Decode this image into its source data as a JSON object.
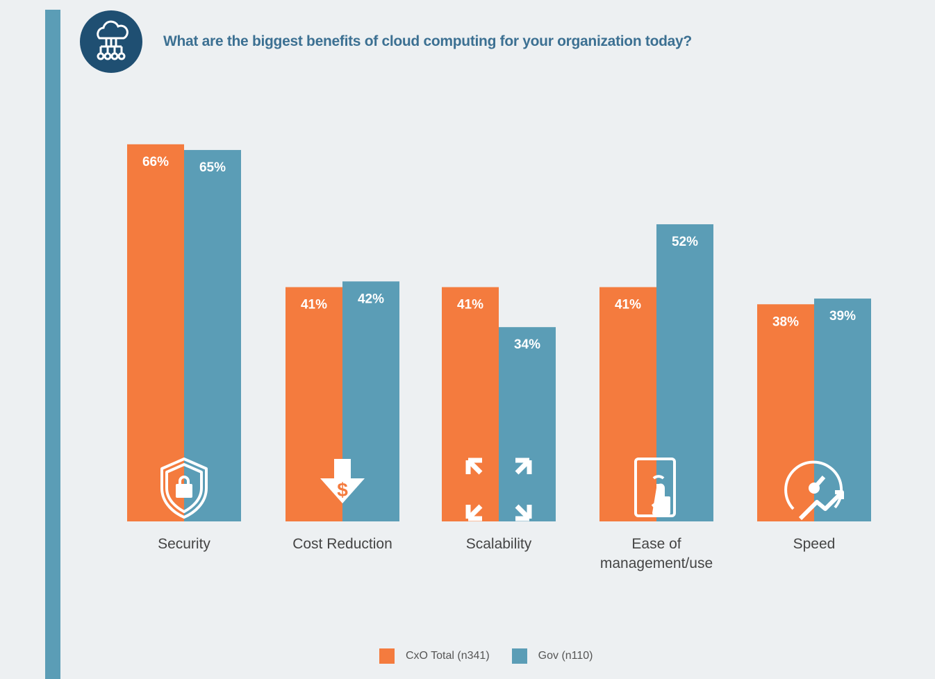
{
  "title": "What are the biggest benefits of cloud computing for your organization today?",
  "colors": {
    "cxo": "#f47b3e",
    "gov": "#5b9db6",
    "accent": "#1f4f72"
  },
  "chart_data": {
    "type": "bar",
    "title": "What are the biggest benefits of cloud computing for your organization today?",
    "categories": [
      "Security",
      "Cost Reduction",
      "Scalability",
      "Ease of management/use",
      "Speed"
    ],
    "category_labels": [
      [
        "Security"
      ],
      [
        "Cost Reduction"
      ],
      [
        "Scalability"
      ],
      [
        "Ease of",
        "management/use"
      ],
      [
        "Speed"
      ]
    ],
    "icons": [
      "shield-lock-icon",
      "dollar-down-arrow-icon",
      "expand-arrows-icon",
      "tablet-touch-icon",
      "speedometer-icon"
    ],
    "series": [
      {
        "name": "CxO Total (n341)",
        "values": [
          66,
          41,
          41,
          41,
          38
        ],
        "labels": [
          "66%",
          "41%",
          "41%",
          "41%",
          "38%"
        ]
      },
      {
        "name": "Gov (n110)",
        "values": [
          65,
          42,
          34,
          52,
          39
        ],
        "labels": [
          "65%",
          "42%",
          "34%",
          "52%",
          "39%"
        ]
      }
    ],
    "unit": "%",
    "ylim": [
      0,
      100
    ],
    "grid": false,
    "legend": "bottom-center"
  }
}
